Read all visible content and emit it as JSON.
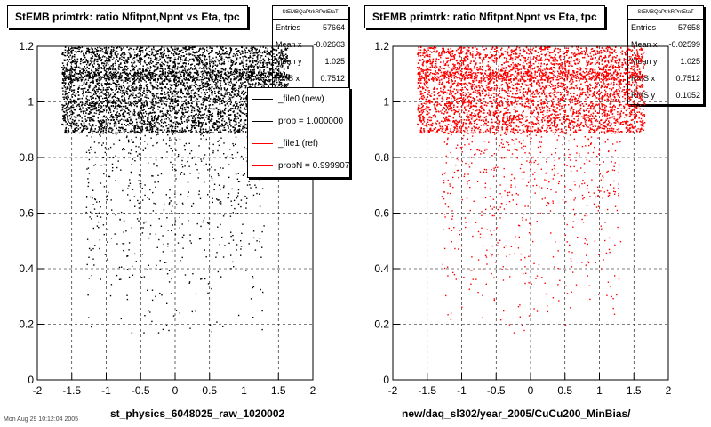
{
  "chart_data": [
    {
      "type": "scatter",
      "title": "StEMB primtrk: ratio Nfitpnt,Npnt vs Eta, tpc",
      "xlabel": "st_physics_6048025_raw_1020002",
      "ylabel": "",
      "xlim": [
        -2,
        2
      ],
      "ylim": [
        0,
        1.2
      ],
      "x_ticks": [
        "-2",
        "-1.5",
        "-1",
        "-0.5",
        "0",
        "0.5",
        "1",
        "1.5",
        "2"
      ],
      "y_ticks": [
        "0",
        "0.2",
        "0.4",
        "0.6",
        "0.8",
        "1",
        "1.2"
      ],
      "grid": true,
      "marker_color": "#000000",
      "series": [
        {
          "values": [
            [
              -1.3,
              1.18
            ],
            [
              -1.0,
              1.12
            ],
            [
              -0.5,
              1.05
            ],
            [
              0.0,
              1.0
            ],
            [
              0.5,
              1.05
            ],
            [
              1.0,
              1.12
            ],
            [
              1.3,
              1.18
            ],
            [
              -1.2,
              1.0
            ],
            [
              -0.8,
              0.97
            ],
            [
              -0.3,
              0.92
            ],
            [
              0.2,
              0.95
            ],
            [
              0.6,
              1.0
            ],
            [
              1.1,
              0.95
            ],
            [
              -0.9,
              0.85
            ],
            [
              -0.2,
              0.8
            ],
            [
              0.4,
              0.88
            ],
            [
              0.9,
              0.82
            ],
            [
              -1.0,
              0.65
            ],
            [
              -0.5,
              0.55
            ],
            [
              0.1,
              0.6
            ],
            [
              0.7,
              0.7
            ],
            [
              1.1,
              0.75
            ],
            [
              -0.7,
              0.4
            ],
            [
              0.2,
              0.35
            ],
            [
              0.8,
              0.45
            ],
            [
              -0.4,
              0.25
            ],
            [
              0.5,
              0.2
            ],
            [
              -0.1,
              0.18
            ]
          ]
        }
      ],
      "stats": {
        "name": "StEMBQaPtrkRPntEtaT",
        "rows": [
          {
            "label": "Entries",
            "value": "57664"
          },
          {
            "label": "Mean x",
            "value": "-0.02603"
          },
          {
            "label": "Mean y",
            "value": "1.025"
          },
          {
            "label": "RMS x",
            "value": "0.7512"
          }
        ]
      },
      "legend": [
        {
          "label": "_file0 (new)",
          "color": "#000000"
        },
        {
          "label": "prob = 1.000000",
          "color": "#000000"
        },
        {
          "label": "_file1 (ref)",
          "color": "#ff0000"
        },
        {
          "label": "probN = 0.999907",
          "color": "#ff0000"
        }
      ]
    },
    {
      "type": "scatter",
      "title": "StEMB primtrk: ratio Nfitpnt,Npnt vs Eta, tpc",
      "xlabel": "new/daq_sl302/year_2005/CuCu200_MinBias/",
      "ylabel": "",
      "xlim": [
        -2,
        2
      ],
      "ylim": [
        0,
        1.2
      ],
      "x_ticks": [
        "-2",
        "-1.5",
        "-1",
        "-0.5",
        "0",
        "0.5",
        "1",
        "1.5",
        "2"
      ],
      "y_ticks": [
        "0",
        "0.2",
        "0.4",
        "0.6",
        "0.8",
        "1",
        "1.2"
      ],
      "grid": true,
      "marker_color": "#ff0000",
      "series": [
        {
          "values": [
            [
              -1.3,
              1.18
            ],
            [
              -1.0,
              1.12
            ],
            [
              -0.5,
              1.05
            ],
            [
              0.0,
              1.0
            ],
            [
              0.5,
              1.05
            ],
            [
              1.0,
              1.12
            ],
            [
              1.3,
              1.18
            ],
            [
              -1.2,
              1.0
            ],
            [
              -0.8,
              0.97
            ],
            [
              -0.3,
              0.92
            ],
            [
              0.2,
              0.95
            ],
            [
              0.6,
              1.0
            ],
            [
              1.1,
              0.95
            ],
            [
              -0.9,
              0.85
            ],
            [
              -0.2,
              0.8
            ],
            [
              0.4,
              0.88
            ],
            [
              0.9,
              0.82
            ],
            [
              -1.0,
              0.65
            ],
            [
              -0.5,
              0.55
            ],
            [
              0.1,
              0.6
            ],
            [
              0.7,
              0.7
            ],
            [
              1.1,
              0.75
            ],
            [
              -0.7,
              0.4
            ],
            [
              0.2,
              0.35
            ],
            [
              0.8,
              0.45
            ],
            [
              -0.4,
              0.25
            ],
            [
              0.5,
              0.2
            ],
            [
              -0.1,
              0.18
            ]
          ]
        }
      ],
      "stats": {
        "name": "StEMBQaPtrkRPntEtaT",
        "rows": [
          {
            "label": "Entries",
            "value": "57658"
          },
          {
            "label": "Mean x",
            "value": "-0.02599"
          },
          {
            "label": "Mean y",
            "value": "1.025"
          },
          {
            "label": "RMS x",
            "value": "0.7512"
          },
          {
            "label": "RMS y",
            "value": "0.1052"
          }
        ]
      }
    }
  ],
  "footer": "Mon Aug 29 10:12:04 2005"
}
